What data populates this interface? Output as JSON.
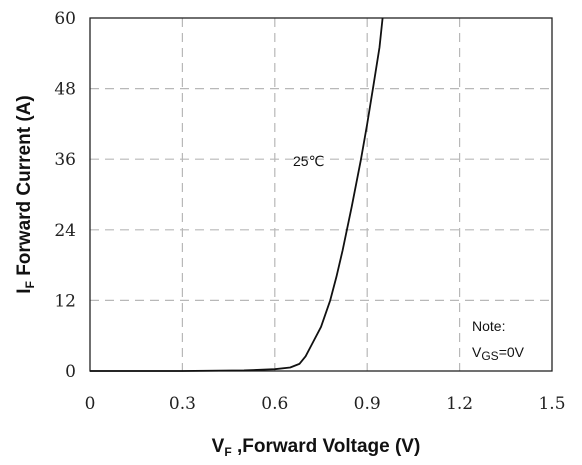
{
  "chart_data": {
    "type": "line",
    "x_axis": {
      "label_main": "V",
      "label_sub": "F",
      "label_rest": " ,Forward Voltage (V)",
      "ticks": [
        "0",
        "0.3",
        "0.6",
        "0.9",
        "1.2",
        "1.5"
      ],
      "xlim": [
        0,
        1.5
      ]
    },
    "y_axis": {
      "label_main": "I",
      "label_sub": "F",
      "label_rest": " Forward Current (A)",
      "ticks": [
        "0",
        "12",
        "24",
        "36",
        "48",
        "60"
      ],
      "ylim": [
        0,
        60
      ]
    },
    "grid": true,
    "series": [
      {
        "label": "25℃",
        "color": "#111111",
        "x": [
          0,
          0.3,
          0.5,
          0.6,
          0.65,
          0.68,
          0.7,
          0.72,
          0.75,
          0.78,
          0.8,
          0.82,
          0.85,
          0.88,
          0.9,
          0.92,
          0.94,
          0.95
        ],
        "y": [
          0,
          0,
          0.1,
          0.3,
          0.6,
          1.2,
          2.5,
          4.5,
          7.5,
          12,
          16,
          20.5,
          28,
          36,
          42,
          48.5,
          55,
          60
        ]
      }
    ],
    "note": {
      "line1": "Note:",
      "line2_main": "V",
      "line2_sub": "GS",
      "line2_rest": "=0V"
    }
  }
}
